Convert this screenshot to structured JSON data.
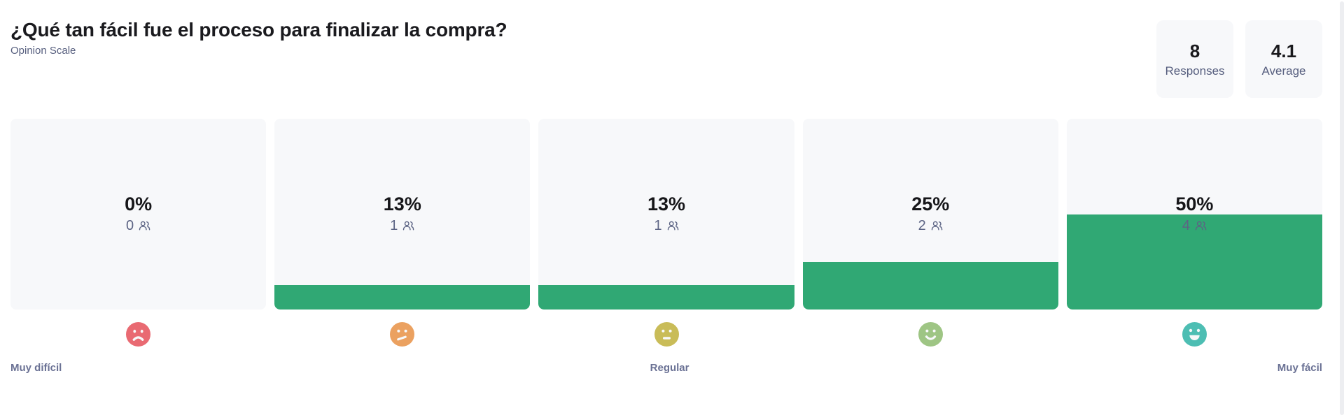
{
  "header": {
    "title": "¿Qué tan fácil fue el proceso para finalizar la compra?",
    "subtitle": "Opinion Scale"
  },
  "stats": [
    {
      "value": "8",
      "label": "Responses"
    },
    {
      "value": "4.1",
      "label": "Average"
    }
  ],
  "columns": [
    {
      "percent": "0%",
      "count": "0",
      "pct": 0,
      "emoji": "sad-face",
      "emoji_color": "#e96a72"
    },
    {
      "percent": "13%",
      "count": "1",
      "pct": 13,
      "emoji": "skeptical-face",
      "emoji_color": "#eba160"
    },
    {
      "percent": "13%",
      "count": "1",
      "pct": 13,
      "emoji": "neutral-face",
      "emoji_color": "#c9bc58"
    },
    {
      "percent": "25%",
      "count": "2",
      "pct": 25,
      "emoji": "smile-face",
      "emoji_color": "#9ec584"
    },
    {
      "percent": "50%",
      "count": "4",
      "pct": 50,
      "emoji": "big-smile-face",
      "emoji_color": "#4dbeb3"
    }
  ],
  "scale_labels": {
    "left": "Muy difícil",
    "center": "Regular",
    "right": "Muy fácil"
  },
  "colors": {
    "bar": "#30a874",
    "panel_bg": "#f7f8fa",
    "count_text": "#5c6484"
  },
  "chart_data": {
    "type": "bar",
    "title": "¿Qué tan fácil fue el proceso para finalizar la compra?",
    "subtitle": "Opinion Scale",
    "categories": [
      "1 (Muy difícil)",
      "2",
      "3 (Regular)",
      "4",
      "5 (Muy fácil)"
    ],
    "series": [
      {
        "name": "Responses",
        "values": [
          0,
          1,
          1,
          2,
          4
        ]
      }
    ],
    "percentages": [
      0,
      13,
      13,
      25,
      50
    ],
    "total_responses": 8,
    "average": 4.1,
    "xlabel": "",
    "ylabel": "",
    "ylim": [
      0,
      100
    ],
    "grid": false,
    "legend": false
  }
}
